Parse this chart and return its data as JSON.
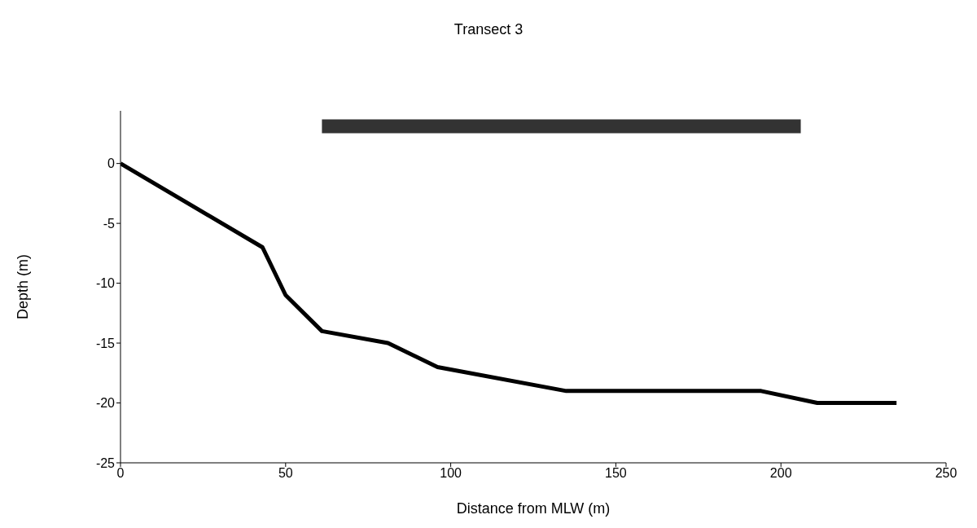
{
  "chart_data": {
    "type": "line",
    "title": "Transect 3",
    "xlabel": "Distance from MLW (m)",
    "ylabel": "Depth (m)",
    "series": [
      {
        "x": [
          0,
          43,
          50,
          61,
          81,
          96,
          135,
          194,
          211,
          235
        ],
        "values": [
          0,
          -7,
          -11,
          -14,
          -15,
          -17,
          -19,
          -19,
          -20,
          -20
        ],
        "color": "#000000"
      },
      {
        "x": [
          61,
          206
        ],
        "values": [
          3.1,
          3.1
        ],
        "color": "#333333"
      }
    ],
    "xlim": [
      0,
      250
    ],
    "xticks": [
      0,
      50,
      100,
      150,
      200,
      250
    ],
    "ylim": [
      -25,
      4.4
    ],
    "yticks": [
      -25,
      -20,
      -15,
      -10,
      -5,
      0
    ],
    "grid": false,
    "legend": false,
    "marker": "none",
    "line_style": "solid"
  }
}
